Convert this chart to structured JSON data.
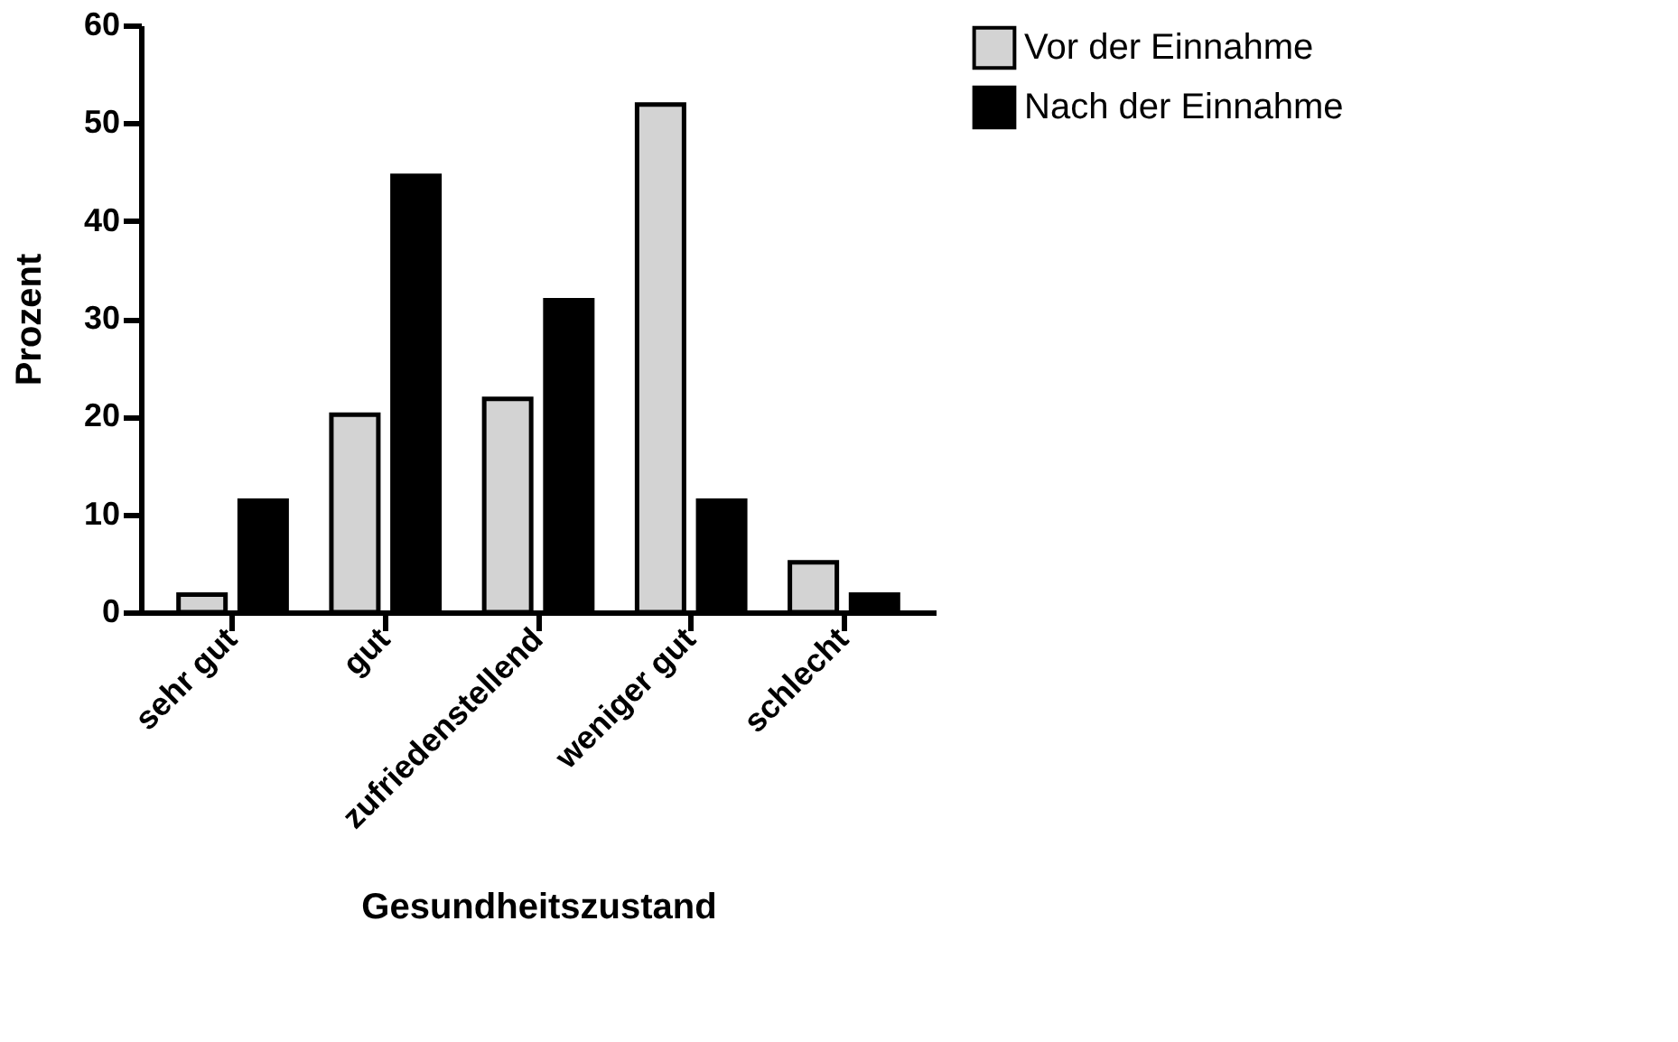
{
  "chart_data": {
    "type": "bar",
    "xlabel": "Gesundheitszustand",
    "ylabel": "Prozent",
    "categories": [
      "sehr gut",
      "gut",
      "zufriedenstellend",
      "weniger gut",
      "schlecht"
    ],
    "series": [
      {
        "name": "Vor der Einnahme",
        "color": "#d3d3d3",
        "values": [
          1.8,
          20.2,
          21.8,
          51.9,
          5.1
        ]
      },
      {
        "name": "Nach der Einnahme",
        "color": "#000000",
        "values": [
          11.4,
          44.6,
          31.9,
          11.4,
          1.8
        ]
      }
    ],
    "ylim": [
      0,
      60
    ],
    "yticks": [
      0,
      10,
      20,
      30,
      40,
      50,
      60
    ],
    "grid": false,
    "legend": "top right"
  }
}
